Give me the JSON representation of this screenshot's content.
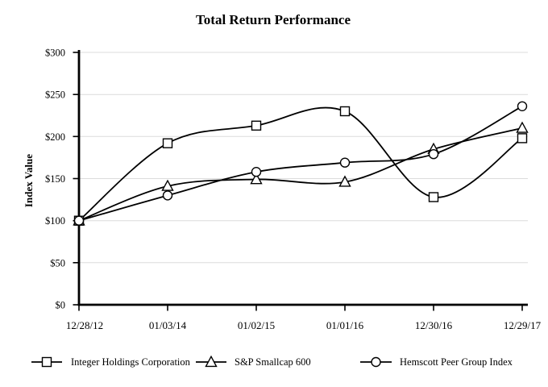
{
  "chart_data": {
    "type": "line",
    "title": "Total Return Performance",
    "ylabel": "Index Value",
    "xlabel": "",
    "x_categories": [
      "12/28/12",
      "01/03/14",
      "01/02/15",
      "01/01/16",
      "12/30/16",
      "12/29/17"
    ],
    "y_ticks": [
      "$300",
      "$250",
      "$200",
      "$150",
      "$100",
      "$50",
      "$0"
    ],
    "ylim": [
      0,
      300
    ],
    "y_tick_step": 50,
    "grid": true,
    "smooth_lines": true,
    "legend_position": "bottom",
    "line_color": "#000000",
    "grid_color": "#dcdcdc",
    "marker_fill": "#ffffff",
    "series": [
      {
        "name": "Integer Holdings Corporation",
        "marker": "square",
        "values": [
          100,
          192,
          213,
          230,
          128,
          198
        ]
      },
      {
        "name": "S&P Smallcap 600",
        "marker": "triangle",
        "values": [
          100,
          141,
          149,
          146,
          185,
          210
        ]
      },
      {
        "name": "Hemscott Peer Group Index",
        "marker": "circle",
        "values": [
          100,
          130,
          158,
          169,
          179,
          236
        ]
      }
    ]
  }
}
